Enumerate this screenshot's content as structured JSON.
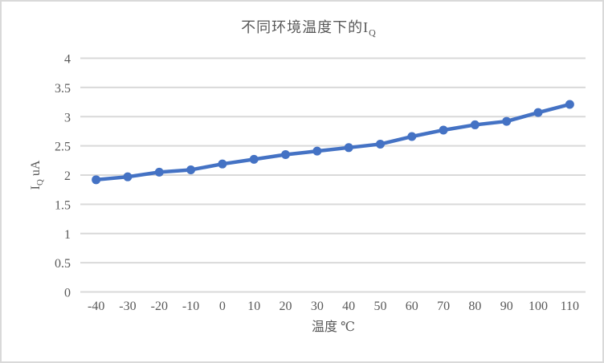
{
  "chart_data": {
    "type": "line",
    "title_main": "不同环境温度下的I",
    "title_sub": "Q",
    "xlabel": "温度 ℃",
    "ylabel_pre": "I",
    "ylabel_sub": "Q",
    "ylabel_post": " uA",
    "categories": [
      "-40",
      "-30",
      "-20",
      "-10",
      "0",
      "10",
      "20",
      "30",
      "40",
      "50",
      "60",
      "70",
      "80",
      "90",
      "100",
      "110"
    ],
    "series": [
      {
        "name": "IQ",
        "values": [
          1.92,
          1.97,
          2.05,
          2.09,
          2.19,
          2.27,
          2.35,
          2.41,
          2.47,
          2.53,
          2.66,
          2.77,
          2.86,
          2.92,
          3.07,
          3.21
        ]
      }
    ],
    "ylim": [
      0,
      4
    ],
    "yticks": [
      {
        "value": 4,
        "label": "4"
      },
      {
        "value": 3.5,
        "label": "3.5"
      },
      {
        "value": 3,
        "label": "3"
      },
      {
        "value": 2.5,
        "label": "2.5"
      },
      {
        "value": 2,
        "label": "2"
      },
      {
        "value": 1.5,
        "label": "1.5"
      },
      {
        "value": 1,
        "label": "1"
      },
      {
        "value": 0.5,
        "label": "0.5"
      },
      {
        "value": 0,
        "label": "0"
      }
    ],
    "grid": true,
    "legend": "none",
    "line_color": "#4472C4",
    "marker_color": "#4472C4",
    "grid_color": "#d9d9d9",
    "axis_line_color": "#d9d9d9",
    "text_color": "#595959",
    "frame_border_color": "#d9d9d9"
  }
}
